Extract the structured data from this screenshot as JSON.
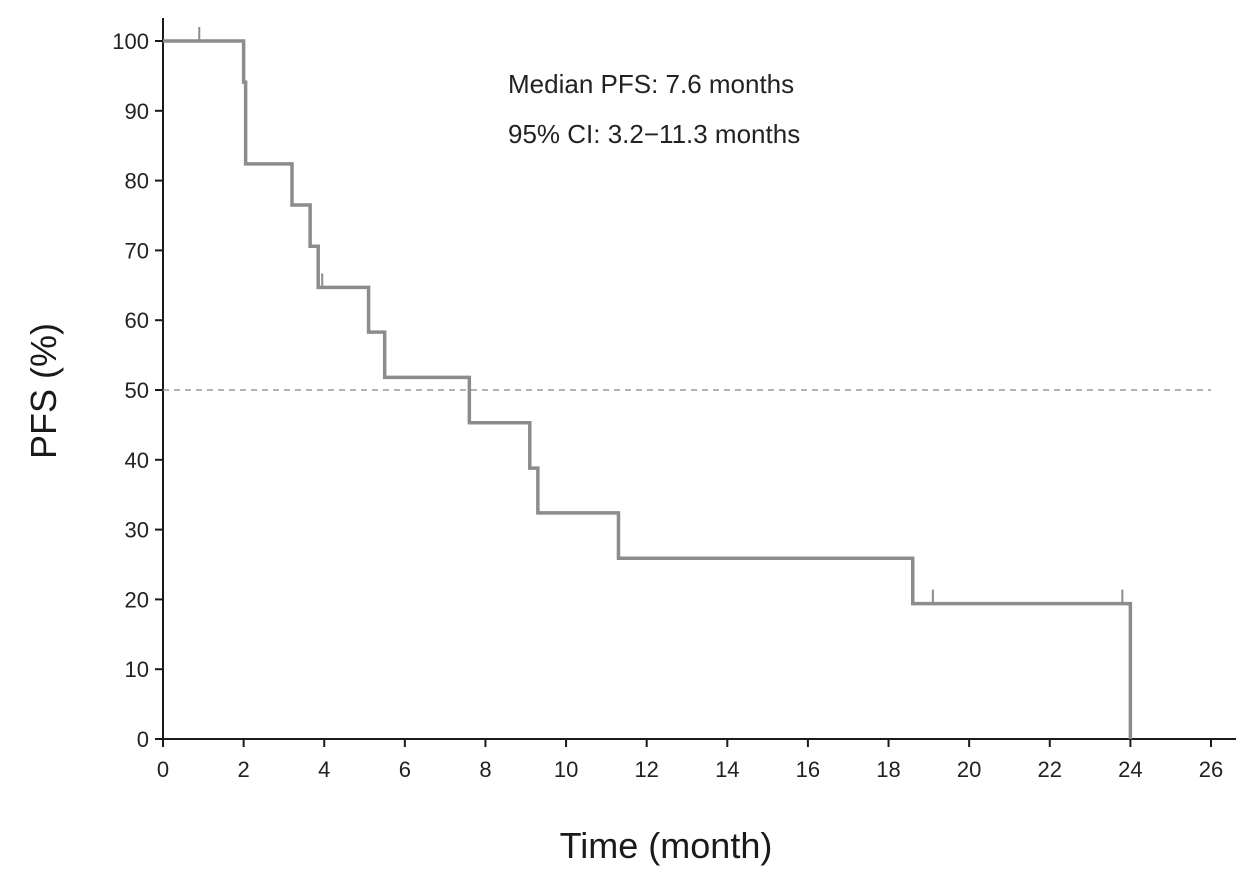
{
  "chart_data": {
    "type": "line",
    "subtype": "kaplan-meier",
    "title": "",
    "xlabel": "Time (month)",
    "ylabel": "PFS (%)",
    "xlim": [
      0,
      26
    ],
    "ylim": [
      0,
      100
    ],
    "xticks": [
      0,
      2,
      4,
      6,
      8,
      10,
      12,
      14,
      16,
      18,
      20,
      22,
      24,
      26
    ],
    "yticks": [
      0,
      10,
      20,
      30,
      40,
      50,
      60,
      70,
      80,
      90,
      100
    ],
    "grid": false,
    "legend": "none",
    "reference_line": {
      "y": 50,
      "style": "dashed",
      "color": "#9a9a9a"
    },
    "annotations": [
      "Median PFS: 7.6 months",
      "95% CI: 3.2−11.3 months"
    ],
    "series": [
      {
        "color": "#8c8c8c",
        "steps": [
          {
            "x": 0,
            "y": 100
          },
          {
            "x": 2.0,
            "y": 94.1
          },
          {
            "x": 2.05,
            "y": 82.4
          },
          {
            "x": 3.2,
            "y": 76.5
          },
          {
            "x": 3.65,
            "y": 70.6
          },
          {
            "x": 3.85,
            "y": 64.7
          },
          {
            "x": 5.1,
            "y": 58.3
          },
          {
            "x": 5.5,
            "y": 51.8
          },
          {
            "x": 7.6,
            "y": 45.3
          },
          {
            "x": 9.1,
            "y": 38.8
          },
          {
            "x": 9.3,
            "y": 32.4
          },
          {
            "x": 11.3,
            "y": 25.9
          },
          {
            "x": 18.6,
            "y": 19.4
          },
          {
            "x": 24.0,
            "y": 0
          }
        ],
        "censored": [
          {
            "x": 0.9,
            "y": 100
          },
          {
            "x": 3.95,
            "y": 64.7
          },
          {
            "x": 19.1,
            "y": 19.4
          },
          {
            "x": 23.8,
            "y": 19.4
          }
        ]
      }
    ]
  }
}
